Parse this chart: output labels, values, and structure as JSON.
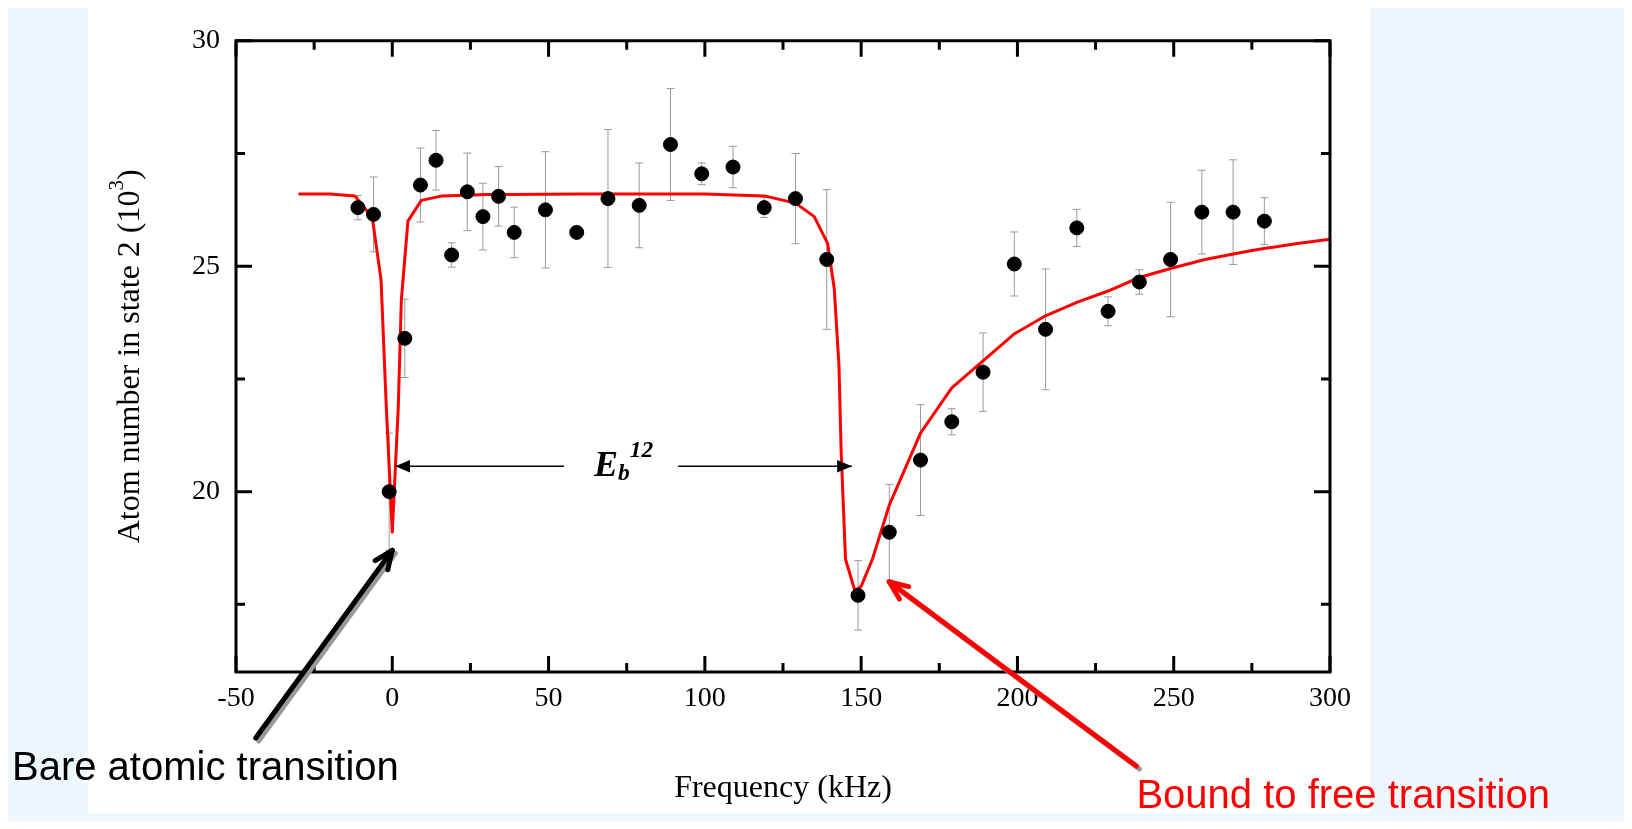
{
  "chart_data": {
    "type": "scatter",
    "xlabel": "Frequency (kHz)",
    "ylabel": "Atom number in state 2 (10$^{3}$)",
    "xlim": [
      -50,
      300
    ],
    "ylim": [
      16,
      30
    ],
    "xticks": [
      -50,
      {
        "value": -25,
        "label": null
      },
      0,
      {
        "value": 25,
        "label": null
      },
      50,
      {
        "value": 75,
        "label": null
      },
      100,
      {
        "value": 125,
        "label": null
      },
      150,
      {
        "value": 175,
        "label": null
      },
      200,
      {
        "value": 225,
        "label": null
      },
      250,
      {
        "value": 275,
        "label": null
      },
      300
    ],
    "yticks": [
      {
        "value": 17.5,
        "label": null
      },
      20,
      {
        "value": 22.5,
        "label": null
      },
      25,
      {
        "value": 27.5,
        "label": null
      },
      30
    ],
    "grid": false,
    "legend": false,
    "series": [
      {
        "type": "scatter",
        "color": "#000000",
        "marker": "circle",
        "x": [
          -11,
          -6,
          -1,
          4,
          9,
          14,
          19,
          24,
          29,
          34,
          39,
          49,
          59,
          69,
          79,
          89,
          99,
          109,
          119,
          129,
          139,
          149,
          159,
          169,
          179,
          189,
          199,
          209,
          219,
          229,
          239,
          249,
          259,
          269,
          279
        ],
        "values": [
          26.3,
          26.15,
          20.0,
          23.4,
          26.8,
          27.35,
          25.25,
          26.65,
          26.1,
          26.55,
          25.75,
          26.25,
          25.75,
          26.5,
          26.35,
          27.7,
          27.05,
          27.2,
          26.3,
          26.5,
          25.15,
          17.7,
          19.1,
          20.7,
          21.55,
          22.65,
          25.05,
          23.6,
          25.85,
          24.0,
          24.65,
          25.15,
          26.2,
          26.2,
          26.0
        ],
        "errors": [
          0.27,
          0.83,
          1.3,
          0.87,
          0.82,
          0.66,
          0.27,
          0.86,
          0.74,
          0.66,
          0.56,
          1.29,
          null,
          1.53,
          0.94,
          1.24,
          0.24,
          0.46,
          0.22,
          1.0,
          1.55,
          0.77,
          1.06,
          1.23,
          0.29,
          0.87,
          0.71,
          1.34,
          0.41,
          0.32,
          0.27,
          1.27,
          0.93,
          1.16,
          0.52
        ]
      },
      {
        "type": "line",
        "color": "#ff0000",
        "marker": "none",
        "x": [
          -30,
          -20,
          -12,
          -6.4,
          -3.6,
          -1.9,
          0,
          1.9,
          2.9,
          5,
          9.3,
          16,
          30,
          60,
          100,
          119,
          129,
          135,
          139.3,
          141.4,
          142.9,
          143.6,
          145,
          148,
          150,
          153.6,
          159,
          164,
          169,
          179,
          189,
          199,
          209,
          219,
          229,
          239,
          249,
          260,
          275,
          289,
          300
        ],
        "values": [
          26.6,
          26.6,
          26.56,
          26.08,
          24.7,
          21.85,
          19.1,
          21.85,
          24.25,
          26.0,
          26.46,
          26.56,
          26.59,
          26.6,
          26.6,
          26.56,
          26.4,
          26.1,
          25.5,
          24.5,
          22.8,
          20.9,
          18.5,
          17.8,
          17.9,
          18.5,
          19.7,
          20.5,
          21.3,
          22.3,
          22.9,
          23.5,
          23.9,
          24.2,
          24.45,
          24.75,
          24.95,
          25.15,
          25.35,
          25.5,
          25.6
        ]
      }
    ],
    "annotations": [
      "E$_{b}$$^{12}$",
      {
        "text": "Bare atomic transition",
        "x": 0,
        "y": 18.7
      },
      {
        "text": "Bound to free transition",
        "x": 159,
        "y": 18.0
      }
    ]
  }
}
